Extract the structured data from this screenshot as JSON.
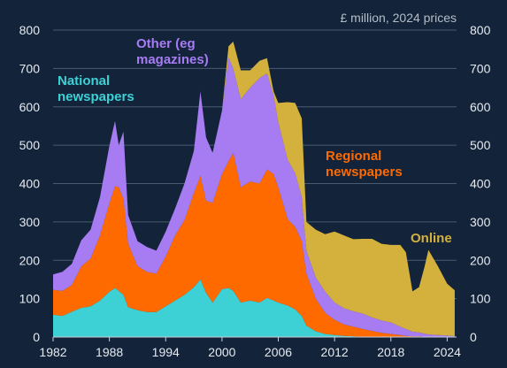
{
  "chart_data": {
    "type": "area",
    "stacked": true,
    "title": "",
    "unit_note": "£ million, 2024 prices",
    "xlabel": "",
    "ylabel": "",
    "xlim": [
      1982,
      2025
    ],
    "ylim": [
      0,
      800
    ],
    "y_ticks": [
      0,
      100,
      200,
      300,
      400,
      500,
      600,
      700,
      800
    ],
    "y_axis_both_sides": true,
    "x_ticks": [
      1982,
      1988,
      1994,
      2000,
      2006,
      2012,
      2018,
      2024
    ],
    "grid": "horizontal",
    "colors": {
      "background": "#13243a",
      "gridline": "#4a5a70",
      "national": "#3dd1d6",
      "regional": "#ff6a00",
      "other": "#a77cf3",
      "online": "#d4b13c",
      "tick_text": "#e6eaf0",
      "unit_text": "#b5bcc8"
    },
    "annotations": [
      {
        "series": "national",
        "lines": [
          "National",
          "newspapers"
        ]
      },
      {
        "series": "other",
        "lines": [
          "Other (eg",
          "magazines)"
        ]
      },
      {
        "series": "regional",
        "lines": [
          "Regional",
          "newspapers"
        ]
      },
      {
        "series": "online",
        "lines": [
          "Online"
        ]
      }
    ],
    "x": [
      1982,
      1983,
      1984,
      1985,
      1986,
      1987,
      1988,
      1988.6,
      1989,
      1989.5,
      1990,
      1991,
      1992,
      1993,
      1994,
      1995,
      1996,
      1997,
      1997.7,
      1998.3,
      1999,
      2000,
      2000.7,
      2001.2,
      2002,
      2003,
      2004,
      2004.8,
      2005.5,
      2006,
      2007,
      2007.8,
      2008.5,
      2009,
      2010,
      2011,
      2012,
      2013,
      2014,
      2015,
      2016,
      2017,
      2018,
      2019,
      2019.6,
      2020.3,
      2021,
      2021.6,
      2022,
      2023,
      2024,
      2024.8
    ],
    "series": [
      {
        "key": "national",
        "values": [
          58,
          55,
          66,
          76,
          80,
          95,
          118,
          128,
          120,
          110,
          78,
          70,
          65,
          65,
          80,
          95,
          110,
          130,
          150,
          115,
          90,
          125,
          128,
          120,
          90,
          95,
          90,
          102,
          95,
          90,
          82,
          72,
          55,
          30,
          15,
          8,
          5,
          3,
          2,
          1,
          1,
          1,
          1,
          0,
          0,
          0,
          0,
          0,
          0,
          0,
          0,
          0
        ]
      },
      {
        "key": "regional",
        "values": [
          65,
          65,
          70,
          108,
          125,
          170,
          230,
          265,
          270,
          250,
          165,
          115,
          105,
          100,
          130,
          170,
          195,
          245,
          270,
          240,
          260,
          300,
          330,
          360,
          300,
          310,
          310,
          335,
          330,
          300,
          225,
          215,
          195,
          135,
          85,
          55,
          40,
          30,
          25,
          20,
          15,
          10,
          7,
          5,
          3,
          2,
          2,
          1,
          1,
          1,
          1,
          0
        ]
      },
      {
        "key": "other",
        "values": [
          40,
          50,
          55,
          68,
          75,
          100,
          150,
          170,
          110,
          175,
          75,
          65,
          65,
          60,
          65,
          70,
          95,
          110,
          220,
          165,
          130,
          165,
          270,
          220,
          230,
          245,
          275,
          250,
          205,
          170,
          155,
          140,
          115,
          60,
          55,
          55,
          45,
          42,
          40,
          40,
          35,
          32,
          30,
          22,
          18,
          12,
          10,
          8,
          6,
          4,
          3,
          2
        ]
      },
      {
        "key": "online",
        "values": [
          0,
          0,
          0,
          0,
          0,
          0,
          0,
          0,
          0,
          0,
          0,
          0,
          0,
          0,
          0,
          0,
          0,
          0,
          0,
          0,
          0,
          0,
          30,
          70,
          75,
          45,
          45,
          40,
          10,
          50,
          150,
          183,
          205,
          75,
          125,
          150,
          185,
          190,
          188,
          195,
          205,
          200,
          202,
          213,
          200,
          105,
          118,
          175,
          220,
          180,
          135,
          120
        ]
      }
    ]
  }
}
